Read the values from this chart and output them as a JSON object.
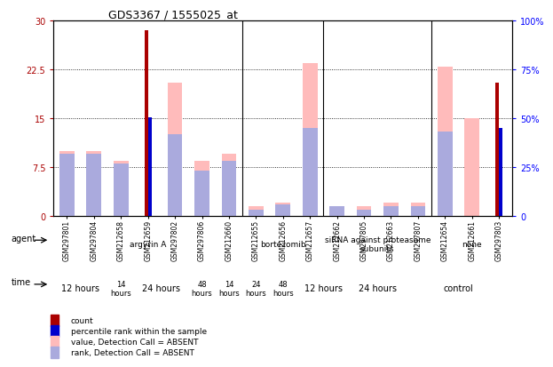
{
  "title": "GDS3367 / 1555025_at",
  "samples": [
    "GSM297801",
    "GSM297804",
    "GSM212658",
    "GSM212659",
    "GSM297802",
    "GSM297806",
    "GSM212660",
    "GSM212655",
    "GSM212656",
    "GSM212657",
    "GSM212662",
    "GSM297805",
    "GSM212663",
    "GSM297807",
    "GSM212654",
    "GSM212661",
    "GSM297803"
  ],
  "count_values": [
    0,
    0,
    0,
    28.5,
    0,
    0,
    0,
    0,
    0,
    0,
    0,
    0,
    0,
    0,
    0,
    0,
    20.5
  ],
  "rank_values": [
    0,
    0,
    0,
    15.2,
    0,
    0,
    0,
    0,
    0,
    0,
    0,
    0,
    0,
    0,
    0,
    0,
    13.5
  ],
  "value_absent": [
    10.0,
    10.0,
    8.5,
    0,
    20.5,
    8.5,
    9.5,
    1.5,
    2.0,
    23.5,
    1.5,
    1.5,
    2.0,
    2.0,
    23.0,
    15.0,
    0
  ],
  "rank_absent": [
    9.5,
    9.5,
    8.0,
    0,
    12.5,
    7.0,
    8.5,
    1.0,
    1.8,
    13.5,
    1.5,
    1.0,
    1.5,
    1.5,
    13.0,
    0,
    0
  ],
  "count_color": "#aa0000",
  "rank_color": "#0000cc",
  "value_absent_color": "#ffbbbb",
  "rank_absent_color": "#aaaadd",
  "ylim_left": [
    0,
    30
  ],
  "ylim_right": [
    0,
    100
  ],
  "yticks_left": [
    0,
    7.5,
    15,
    22.5,
    30
  ],
  "yticks_right": [
    0,
    25,
    50,
    75,
    100
  ],
  "ytick_labels_left": [
    "0",
    "7.5",
    "15",
    "22.5",
    "30"
  ],
  "ytick_labels_right": [
    "0",
    "25%",
    "50%",
    "75%",
    "100%"
  ],
  "separators": [
    6.5,
    9.5,
    13.5
  ],
  "agent_groups": [
    {
      "label": "argyrin A",
      "start": 0,
      "end": 7,
      "color": "#ccffcc"
    },
    {
      "label": "bortezomib",
      "start": 7,
      "end": 10,
      "color": "#ccffcc"
    },
    {
      "label": "siRNA against proteasome\nsubunits",
      "start": 10,
      "end": 14,
      "color": "#ccffcc"
    },
    {
      "label": "none",
      "start": 14,
      "end": 17,
      "color": "#44cc44"
    }
  ],
  "time_groups": [
    {
      "label": "12 hours",
      "start": 0,
      "end": 2,
      "color": "#ee88ee",
      "fontsize": 7
    },
    {
      "label": "14\nhours",
      "start": 2,
      "end": 3,
      "color": "#ee88ee",
      "fontsize": 6
    },
    {
      "label": "24 hours",
      "start": 3,
      "end": 5,
      "color": "#ee88ee",
      "fontsize": 7
    },
    {
      "label": "48\nhours",
      "start": 5,
      "end": 6,
      "color": "#ee88ee",
      "fontsize": 6
    },
    {
      "label": "14\nhours",
      "start": 6,
      "end": 7,
      "color": "#ee88ee",
      "fontsize": 6
    },
    {
      "label": "24\nhours",
      "start": 7,
      "end": 8,
      "color": "#ee88ee",
      "fontsize": 6
    },
    {
      "label": "48\nhours",
      "start": 8,
      "end": 9,
      "color": "#ee88ee",
      "fontsize": 6
    },
    {
      "label": "12 hours",
      "start": 9,
      "end": 11,
      "color": "#ee88ee",
      "fontsize": 7
    },
    {
      "label": "24 hours",
      "start": 11,
      "end": 13,
      "color": "#ee88ee",
      "fontsize": 7
    },
    {
      "label": "control",
      "start": 13,
      "end": 17,
      "color": "#ee88ee",
      "fontsize": 7
    }
  ],
  "legend_items": [
    {
      "label": "count",
      "color": "#aa0000"
    },
    {
      "label": "percentile rank within the sample",
      "color": "#0000cc"
    },
    {
      "label": "value, Detection Call = ABSENT",
      "color": "#ffbbbb"
    },
    {
      "label": "rank, Detection Call = ABSENT",
      "color": "#aaaadd"
    }
  ],
  "dotted_yticks": [
    7.5,
    15,
    22.5
  ],
  "background_color": "#ffffff"
}
